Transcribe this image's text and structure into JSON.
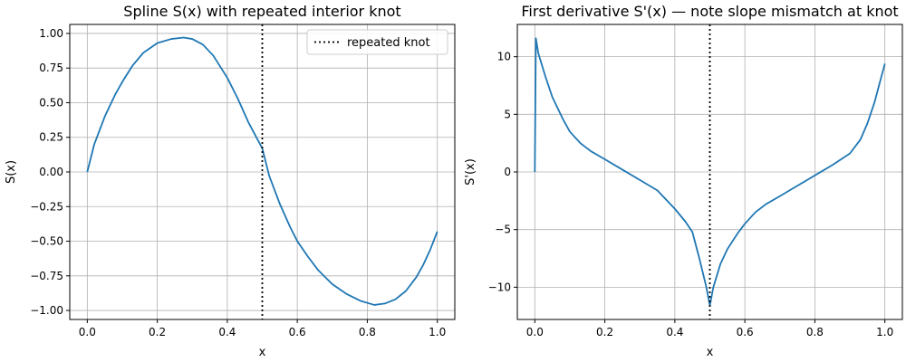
{
  "chart_data": [
    {
      "type": "line",
      "title": "Spline S(x) with repeated interior knot",
      "xlabel": "x",
      "ylabel": "S(x)",
      "xlim": [
        -0.05,
        1.05
      ],
      "ylim": [
        -1.065,
        1.065
      ],
      "xticks": [
        0.0,
        0.2,
        0.4,
        0.6,
        0.8,
        1.0
      ],
      "xtick_labels": [
        "0.0",
        "0.2",
        "0.4",
        "0.6",
        "0.8",
        "1.0"
      ],
      "yticks": [
        -1.0,
        -0.75,
        -0.5,
        -0.25,
        0.0,
        0.25,
        0.5,
        0.75,
        1.0
      ],
      "ytick_labels": [
        "−1.00",
        "−0.75",
        "−0.50",
        "−0.25",
        "0.00",
        "0.25",
        "0.50",
        "0.75",
        "1.00"
      ],
      "grid": true,
      "legend": {
        "position": "top-right",
        "entries": [
          "repeated knot"
        ]
      },
      "vline": {
        "x": 0.5,
        "style": "dotted",
        "color": "#000000"
      },
      "series": [
        {
          "color": "#1f77b4",
          "x": [
            0.0,
            0.02,
            0.05,
            0.08,
            0.1,
            0.13,
            0.16,
            0.2,
            0.24,
            0.275,
            0.3,
            0.33,
            0.36,
            0.4,
            0.43,
            0.46,
            0.5,
            0.52,
            0.55,
            0.58,
            0.6,
            0.63,
            0.66,
            0.7,
            0.74,
            0.78,
            0.82,
            0.85,
            0.88,
            0.91,
            0.94,
            0.96,
            0.98,
            1.0
          ],
          "y": [
            0.0,
            0.2,
            0.4,
            0.56,
            0.65,
            0.77,
            0.86,
            0.93,
            0.96,
            0.97,
            0.96,
            0.92,
            0.84,
            0.68,
            0.53,
            0.36,
            0.17,
            -0.03,
            -0.23,
            -0.4,
            -0.5,
            -0.61,
            -0.71,
            -0.81,
            -0.88,
            -0.93,
            -0.96,
            -0.95,
            -0.92,
            -0.86,
            -0.76,
            -0.67,
            -0.56,
            -0.43
          ]
        }
      ]
    },
    {
      "type": "line",
      "title": "First derivative S'(x) — note slope mismatch at knot",
      "xlabel": "x",
      "ylabel": "S'(x)",
      "xlim": [
        -0.05,
        1.05
      ],
      "ylim": [
        -12.8,
        12.8
      ],
      "xticks": [
        0.0,
        0.2,
        0.4,
        0.6,
        0.8,
        1.0
      ],
      "xtick_labels": [
        "0.0",
        "0.2",
        "0.4",
        "0.6",
        "0.8",
        "1.0"
      ],
      "yticks": [
        -10,
        -5,
        0,
        5,
        10
      ],
      "ytick_labels": [
        "−10",
        "−5",
        "0",
        "5",
        "10"
      ],
      "grid": true,
      "vline": {
        "x": 0.5,
        "style": "dotted",
        "color": "#000000"
      },
      "series": [
        {
          "color": "#1f77b4",
          "x": [
            0.0,
            0.003,
            0.01,
            0.03,
            0.05,
            0.08,
            0.1,
            0.13,
            0.16,
            0.2,
            0.25,
            0.3,
            0.35,
            0.4,
            0.43,
            0.45,
            0.47,
            0.49,
            0.5,
            0.51,
            0.53,
            0.55,
            0.58,
            0.6,
            0.63,
            0.66,
            0.7,
            0.75,
            0.8,
            0.85,
            0.9,
            0.93,
            0.95,
            0.97,
            1.0
          ],
          "y": [
            0.0,
            11.6,
            10.3,
            8.3,
            6.5,
            4.6,
            3.5,
            2.5,
            1.8,
            1.1,
            0.2,
            -0.7,
            -1.6,
            -3.2,
            -4.3,
            -5.2,
            -7.5,
            -10.0,
            -11.6,
            -10.0,
            -8.0,
            -6.7,
            -5.3,
            -4.5,
            -3.5,
            -2.8,
            -2.1,
            -1.2,
            -0.3,
            0.6,
            1.6,
            2.8,
            4.2,
            6.0,
            9.4
          ]
        }
      ]
    }
  ]
}
